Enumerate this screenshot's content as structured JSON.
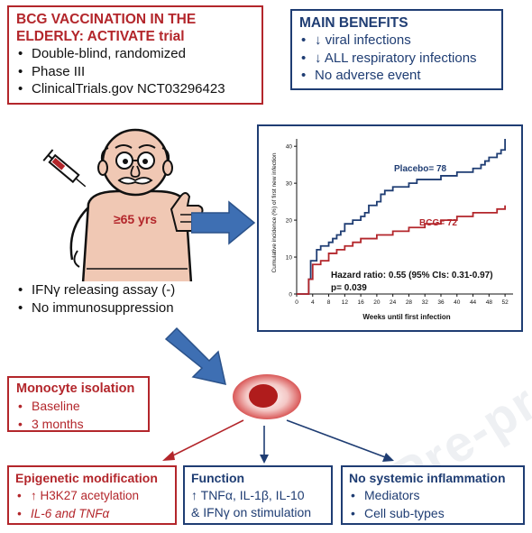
{
  "trial": {
    "title_line1": "BCG VACCINATION IN THE",
    "title_line2": "ELDERLY: ACTIVATE trial",
    "items": [
      "Double-blind, randomized",
      "Phase III",
      "ClinicalTrials.gov NCT03296423"
    ]
  },
  "benefits": {
    "title": "MAIN BENEFITS",
    "items": [
      "↓ viral infections",
      "↓ ALL respiratory infections",
      "No adverse event"
    ]
  },
  "patient": {
    "age_label": "≥65 yrs",
    "criteria": [
      "IFNγ releasing assay (-)",
      "No immunosuppression"
    ]
  },
  "monocyte": {
    "title": "Monocyte isolation",
    "items": [
      "Baseline",
      "3 months"
    ]
  },
  "epigenetic": {
    "title": "Epigenetic modification",
    "items": [
      "↑ H3K27 acetylation",
      "IL-6 and TNFα"
    ]
  },
  "function": {
    "title": "Function",
    "line1": "↑ TNFα, IL-1β, IL-10",
    "line2": "&  IFNγ on stimulation"
  },
  "inflammation": {
    "title": "No systemic inflammation",
    "items": [
      "Mediators",
      "Cell sub-types"
    ]
  },
  "watermark": "Pre-proof",
  "chart_data": {
    "type": "line",
    "xlabel": "Weeks until first infection",
    "ylabel": "Cumulative incidence (%) of first new infection",
    "xlim": [
      0,
      54
    ],
    "ylim": [
      0,
      42
    ],
    "xticks": [
      0,
      4,
      8,
      12,
      16,
      20,
      24,
      28,
      32,
      36,
      40,
      44,
      48,
      52
    ],
    "yticks": [
      0,
      10,
      20,
      30,
      40
    ],
    "grid": false,
    "series": [
      {
        "name": "Placebo= 78",
        "color": "#1f3d73",
        "style": "step",
        "x": [
          0,
          3,
          3.5,
          5,
          6,
          8,
          9,
          10,
          11,
          12,
          14,
          15,
          16,
          17,
          18,
          20,
          21,
          22,
          24,
          28,
          30,
          32,
          36,
          40,
          44,
          46,
          47,
          48,
          50,
          51,
          52
        ],
        "y": [
          0,
          4,
          9,
          12,
          13,
          14,
          15,
          16,
          17,
          19,
          20,
          20,
          21,
          22,
          24,
          25,
          27,
          28,
          29,
          30,
          31,
          31,
          32,
          33,
          34,
          35,
          36,
          37,
          38,
          39,
          42
        ]
      },
      {
        "name": "BCG= 72",
        "color": "#b3262b",
        "style": "step",
        "x": [
          0,
          3,
          4,
          6,
          8,
          10,
          12,
          14,
          16,
          20,
          24,
          28,
          32,
          36,
          40,
          44,
          48,
          50,
          52
        ],
        "y": [
          0,
          4,
          8,
          9,
          11,
          12,
          13,
          14,
          15,
          16,
          17,
          18,
          19,
          20,
          21,
          22,
          22,
          23,
          24
        ]
      }
    ],
    "annotation_line1": "Hazard ratio: 0.55 (95% CIs: 0.31-0.97)",
    "annotation_line2": "p= 0.039"
  }
}
